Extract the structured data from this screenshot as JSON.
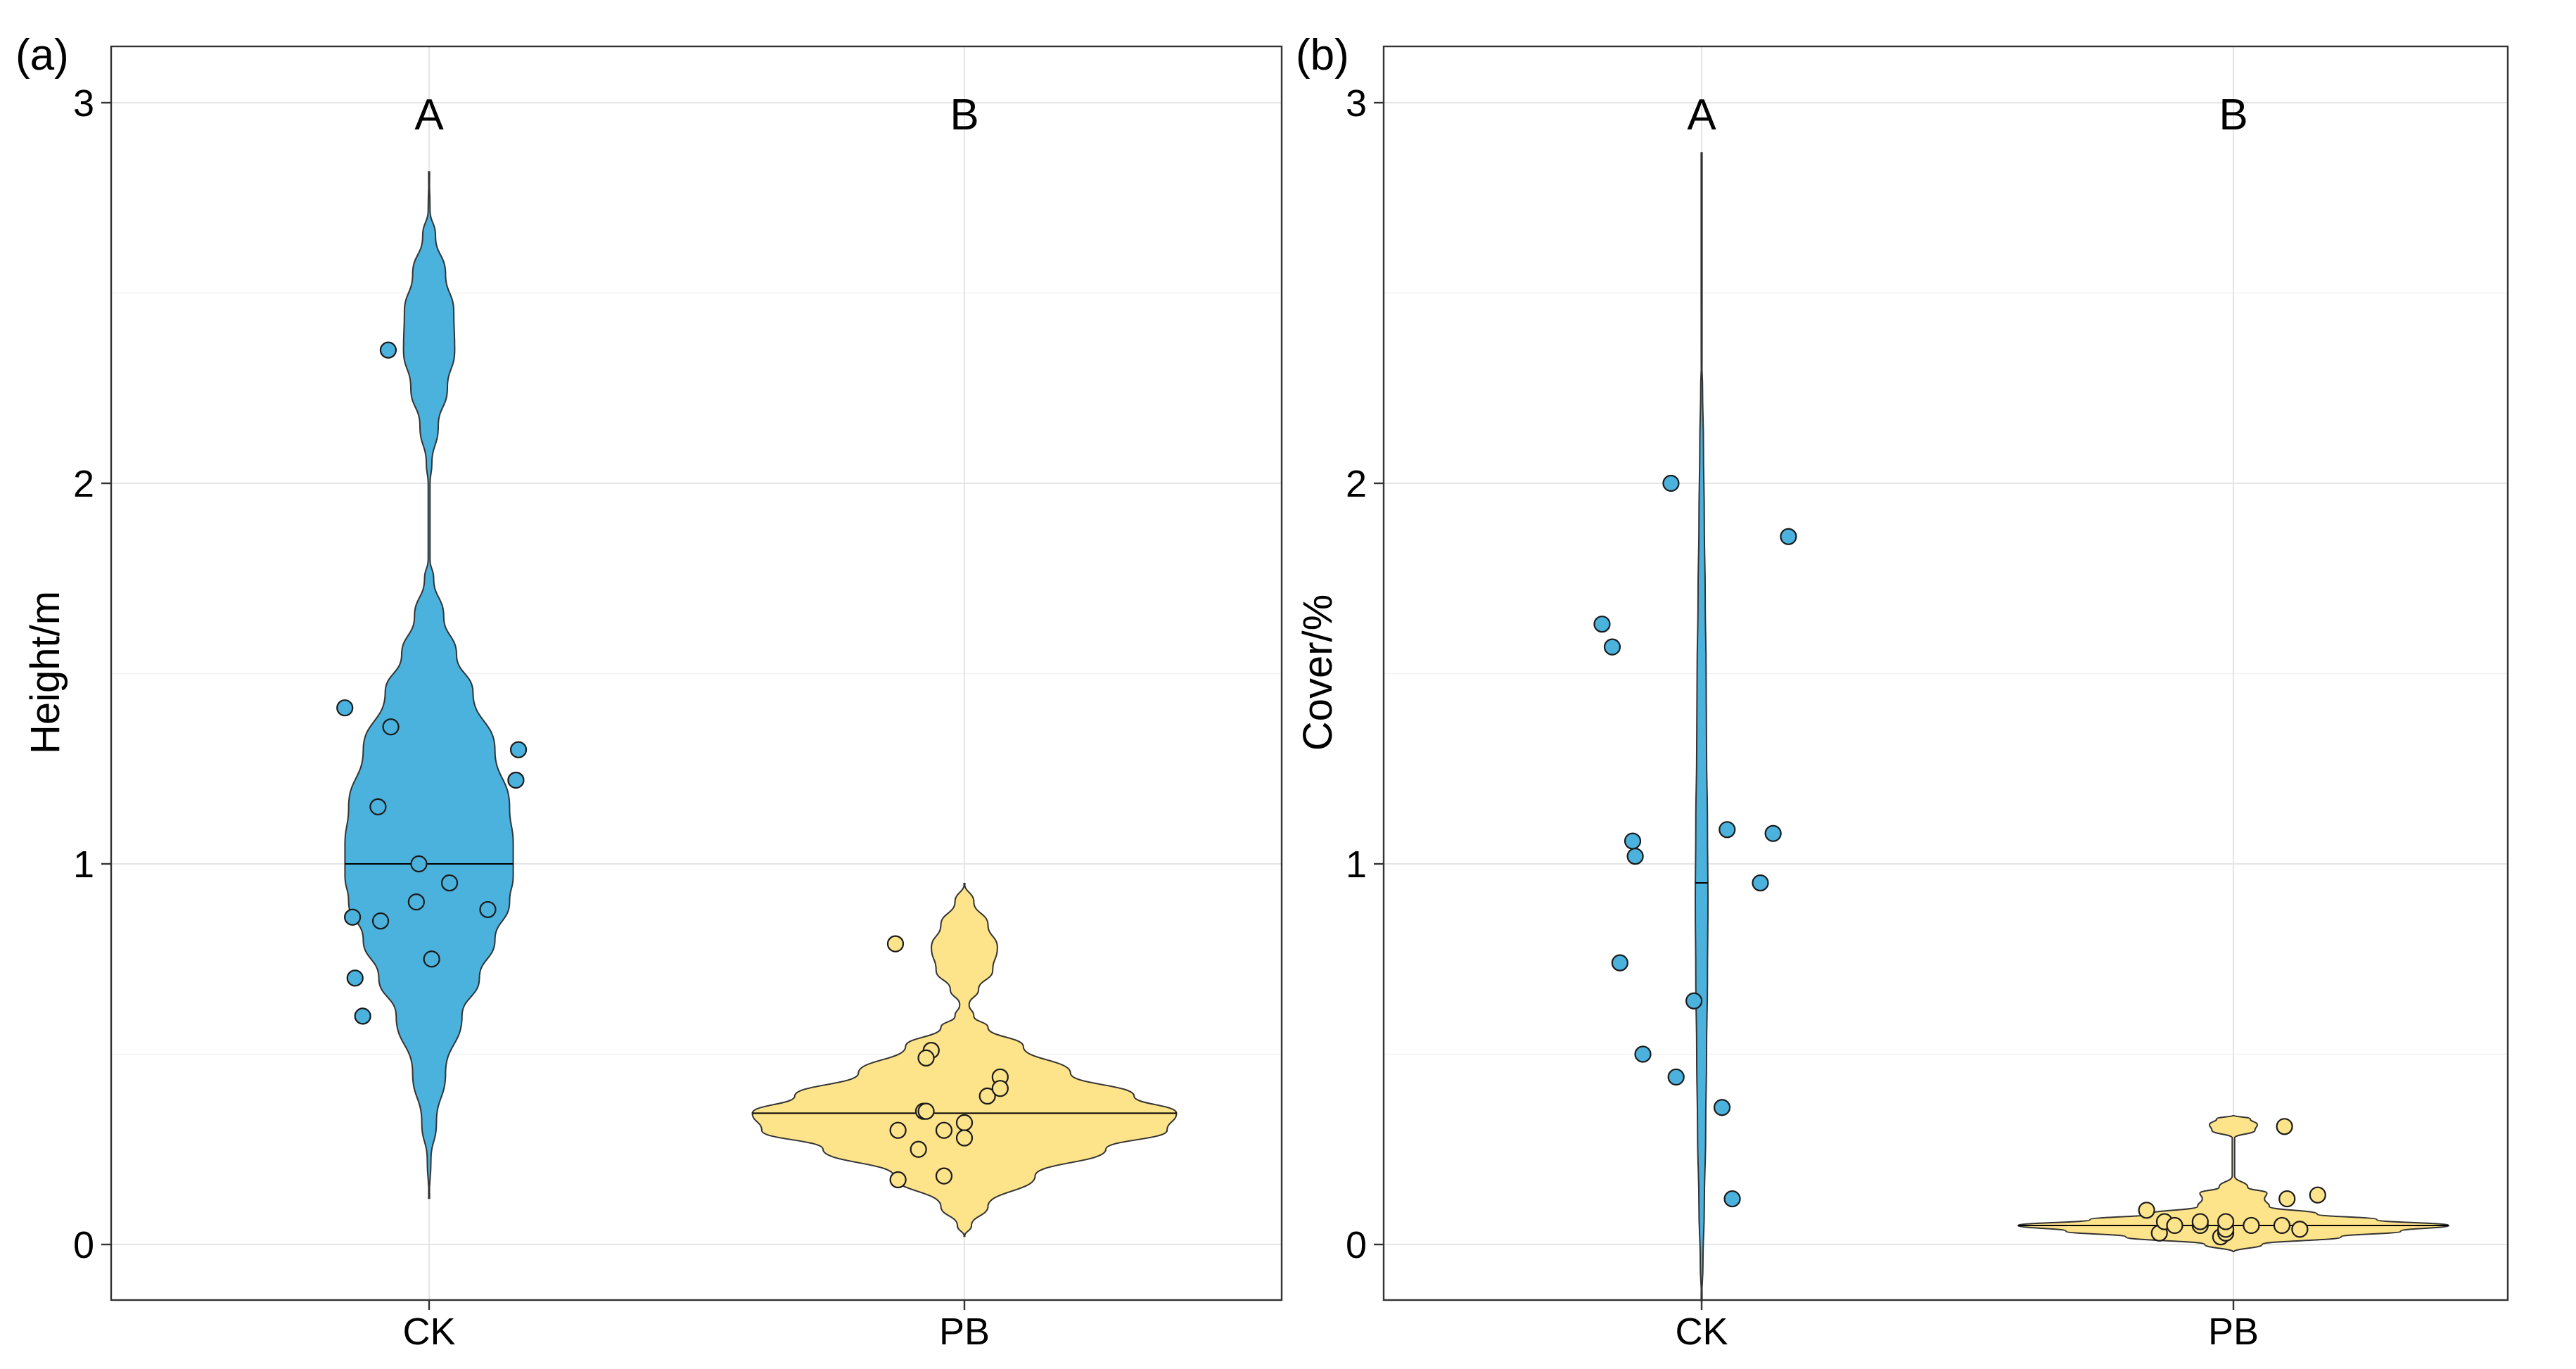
{
  "colors": {
    "CK": "#4BB2DD",
    "PB": "#FDE38A"
  },
  "chart_data": [
    {
      "type": "violin",
      "panel_label": "(a)",
      "ylabel": "Height/m",
      "xlabel": "",
      "categories": [
        "CK",
        "PB"
      ],
      "ylim": [
        -0.15,
        3.15
      ],
      "yticks": [
        0,
        1,
        2,
        3
      ],
      "grid": true,
      "significance_letters": [
        "A",
        "B"
      ],
      "violins": [
        {
          "group": "CK",
          "min": 0.12,
          "max": 2.82,
          "median": 1.0,
          "density_profile": [
            [
              0.12,
              0
            ],
            [
              0.22,
              0.02
            ],
            [
              0.32,
              0.08
            ],
            [
              0.45,
              0.18
            ],
            [
              0.6,
              0.36
            ],
            [
              0.7,
              0.55
            ],
            [
              0.8,
              0.72
            ],
            [
              0.9,
              0.88
            ],
            [
              0.97,
              0.92
            ],
            [
              1.05,
              0.92
            ],
            [
              1.15,
              0.88
            ],
            [
              1.3,
              0.72
            ],
            [
              1.45,
              0.48
            ],
            [
              1.55,
              0.3
            ],
            [
              1.65,
              0.16
            ],
            [
              1.75,
              0.05
            ],
            [
              1.8,
              0.01
            ],
            [
              2.0,
              0.01
            ],
            [
              2.05,
              0.03
            ],
            [
              2.15,
              0.1
            ],
            [
              2.25,
              0.2
            ],
            [
              2.35,
              0.28
            ],
            [
              2.45,
              0.27
            ],
            [
              2.55,
              0.18
            ],
            [
              2.65,
              0.07
            ],
            [
              2.72,
              0.01
            ],
            [
              2.82,
              0
            ]
          ],
          "points": [
            [
              -0.33,
              1.41
            ],
            [
              -0.16,
              2.35
            ],
            [
              -0.15,
              1.36
            ],
            [
              -0.2,
              1.15
            ],
            [
              -0.3,
              0.86
            ],
            [
              -0.19,
              0.85
            ],
            [
              -0.29,
              0.7
            ],
            [
              -0.26,
              0.6
            ],
            [
              -0.04,
              1.0
            ],
            [
              -0.05,
              0.9
            ],
            [
              0.08,
              0.95
            ],
            [
              0.01,
              0.75
            ],
            [
              0.23,
              0.88
            ],
            [
              0.35,
              1.3
            ],
            [
              0.34,
              1.22
            ]
          ]
        },
        {
          "group": "PB",
          "min": 0.02,
          "max": 0.95,
          "median": 0.345,
          "density_profile": [
            [
              0.02,
              0
            ],
            [
              0.05,
              0.03
            ],
            [
              0.1,
              0.1
            ],
            [
              0.18,
              0.3
            ],
            [
              0.25,
              0.6
            ],
            [
              0.3,
              0.86
            ],
            [
              0.345,
              0.9
            ],
            [
              0.39,
              0.72
            ],
            [
              0.45,
              0.45
            ],
            [
              0.52,
              0.25
            ],
            [
              0.57,
              0.1
            ],
            [
              0.6,
              0.04
            ],
            [
              0.63,
              0.02
            ],
            [
              0.67,
              0.06
            ],
            [
              0.72,
              0.12
            ],
            [
              0.78,
              0.14
            ],
            [
              0.84,
              0.1
            ],
            [
              0.9,
              0.04
            ],
            [
              0.95,
              0
            ]
          ],
          "points": [
            [
              -0.27,
              0.79
            ],
            [
              -0.13,
              0.51
            ],
            [
              -0.15,
              0.49
            ],
            [
              -0.16,
              0.35
            ],
            [
              -0.15,
              0.35
            ],
            [
              -0.26,
              0.3
            ],
            [
              -0.18,
              0.25
            ],
            [
              -0.08,
              0.3
            ],
            [
              0.0,
              0.32
            ],
            [
              0.0,
              0.28
            ],
            [
              -0.08,
              0.18
            ],
            [
              -0.26,
              0.17
            ],
            [
              0.09,
              0.39
            ],
            [
              0.14,
              0.44
            ],
            [
              0.14,
              0.41
            ]
          ]
        }
      ]
    },
    {
      "type": "violin",
      "panel_label": "(b)",
      "ylabel": "Cover/%",
      "xlabel": "",
      "categories": [
        "CK",
        "PB"
      ],
      "ylim": [
        -0.15,
        3.15
      ],
      "yticks": [
        0,
        1,
        2,
        3
      ],
      "grid": true,
      "significance_letters": [
        "A",
        "B"
      ],
      "violins": [
        {
          "group": "CK",
          "min": -0.15,
          "max": 2.87,
          "median": 0.95,
          "density_profile": [
            [
              -0.15,
              0
            ],
            [
              -0.05,
              0.006
            ],
            [
              0.1,
              0.012
            ],
            [
              0.3,
              0.018
            ],
            [
              0.5,
              0.022
            ],
            [
              0.7,
              0.026
            ],
            [
              0.9,
              0.028
            ],
            [
              1.1,
              0.026
            ],
            [
              1.3,
              0.022
            ],
            [
              1.5,
              0.02
            ],
            [
              1.7,
              0.016
            ],
            [
              1.9,
              0.012
            ],
            [
              2.1,
              0.008
            ],
            [
              2.25,
              0.004
            ],
            [
              2.32,
              0.001
            ],
            [
              2.5,
              0
            ],
            [
              2.87,
              0
            ]
          ],
          "points": [
            [
              -0.39,
              1.63
            ],
            [
              -0.35,
              1.57
            ],
            [
              -0.27,
              1.06
            ],
            [
              -0.26,
              1.02
            ],
            [
              -0.32,
              0.74
            ],
            [
              -0.23,
              0.5
            ],
            [
              -0.12,
              2.0
            ],
            [
              -0.1,
              0.44
            ],
            [
              -0.03,
              0.64
            ],
            [
              0.1,
              1.09
            ],
            [
              0.08,
              0.36
            ],
            [
              0.12,
              0.12
            ],
            [
              0.23,
              0.95
            ],
            [
              0.28,
              1.08
            ],
            [
              0.34,
              1.86
            ]
          ]
        },
        {
          "group": "PB",
          "min": -0.02,
          "max": 0.34,
          "median": 0.05,
          "density_profile": [
            [
              -0.02,
              0
            ],
            [
              0.0,
              0.12
            ],
            [
              0.02,
              0.45
            ],
            [
              0.035,
              0.7
            ],
            [
              0.05,
              0.9
            ],
            [
              0.065,
              0.6
            ],
            [
              0.08,
              0.35
            ],
            [
              0.1,
              0.15
            ],
            [
              0.12,
              0.13
            ],
            [
              0.135,
              0.14
            ],
            [
              0.15,
              0.06
            ],
            [
              0.18,
              0.005
            ],
            [
              0.28,
              0.005
            ],
            [
              0.3,
              0.09
            ],
            [
              0.315,
              0.1
            ],
            [
              0.33,
              0.07
            ],
            [
              0.34,
              0
            ]
          ],
          "points": [
            [
              -0.34,
              0.09
            ],
            [
              -0.29,
              0.03
            ],
            [
              -0.27,
              0.06
            ],
            [
              -0.23,
              0.05
            ],
            [
              -0.13,
              0.05
            ],
            [
              -0.13,
              0.06
            ],
            [
              -0.05,
              0.02
            ],
            [
              -0.03,
              0.03
            ],
            [
              -0.03,
              0.04
            ],
            [
              -0.03,
              0.06
            ],
            [
              0.07,
              0.05
            ],
            [
              0.19,
              0.05
            ],
            [
              0.2,
              0.31
            ],
            [
              0.21,
              0.12
            ],
            [
              0.26,
              0.04
            ],
            [
              0.33,
              0.13
            ]
          ]
        }
      ]
    }
  ]
}
